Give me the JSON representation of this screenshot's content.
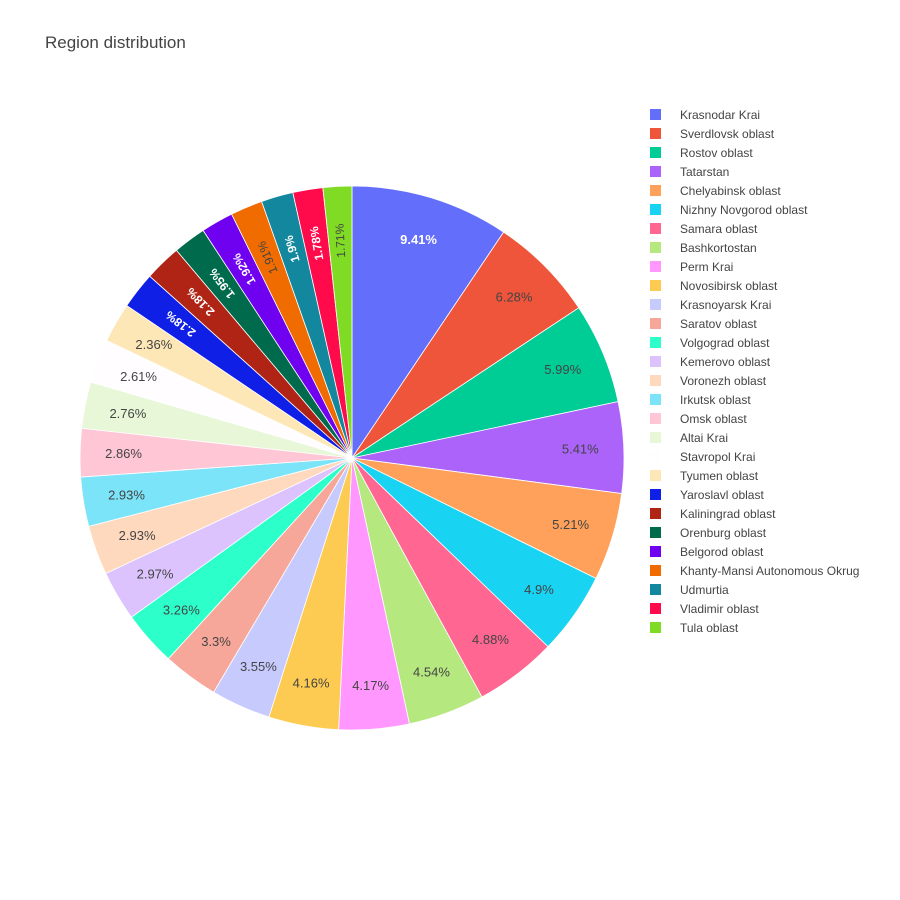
{
  "chart_data": {
    "type": "pie",
    "title": "Region distribution",
    "sort": "descending",
    "direction": "clockwise",
    "start_angle_deg": 0,
    "legend_placement": "right",
    "slices": [
      {
        "label": "Krasnodar Krai",
        "percent": 9.41,
        "text": "9.41%",
        "color": "#636EFA",
        "text_color": "#ffffff"
      },
      {
        "label": "Sverdlovsk oblast",
        "percent": 6.28,
        "text": "6.28%",
        "color": "#EF553B",
        "text_color": "#444444"
      },
      {
        "label": "Rostov oblast",
        "percent": 5.99,
        "text": "5.99%",
        "color": "#00CC96",
        "text_color": "#444444"
      },
      {
        "label": "Tatarstan",
        "percent": 5.41,
        "text": "5.41%",
        "color": "#AB63FA",
        "text_color": "#444444"
      },
      {
        "label": "Chelyabinsk oblast",
        "percent": 5.21,
        "text": "5.21%",
        "color": "#FFA15A",
        "text_color": "#444444"
      },
      {
        "label": "Nizhny Novgorod oblast",
        "percent": 4.9,
        "text": "4.9%",
        "color": "#19D3F3",
        "text_color": "#444444"
      },
      {
        "label": "Samara oblast",
        "percent": 4.88,
        "text": "4.88%",
        "color": "#FF6692",
        "text_color": "#444444"
      },
      {
        "label": "Bashkortostan",
        "percent": 4.54,
        "text": "4.54%",
        "color": "#B6E880",
        "text_color": "#444444"
      },
      {
        "label": "Perm Krai",
        "percent": 4.17,
        "text": "4.17%",
        "color": "#FF97FF",
        "text_color": "#444444"
      },
      {
        "label": "Novosibirsk oblast",
        "percent": 4.16,
        "text": "4.16%",
        "color": "#FECB52",
        "text_color": "#444444"
      },
      {
        "label": "Krasnoyarsk Krai",
        "percent": 3.55,
        "text": "3.55%",
        "color": "#C6CAFD",
        "text_color": "#444444"
      },
      {
        "label": "Saratov oblast",
        "percent": 3.3,
        "text": "3.3%",
        "color": "#F7A799",
        "text_color": "#444444"
      },
      {
        "label": "Volgograd oblast",
        "percent": 3.26,
        "text": "3.26%",
        "color": "#2DFFCA",
        "text_color": "#444444"
      },
      {
        "label": "Kemerovo oblast",
        "percent": 2.97,
        "text": "2.97%",
        "color": "#DDC3FD",
        "text_color": "#444444"
      },
      {
        "label": "Voronezh oblast",
        "percent": 2.93,
        "text": "2.93%",
        "color": "#FFD9BD",
        "text_color": "#444444"
      },
      {
        "label": "Irkutsk oblast",
        "percent": 2.93,
        "text": "2.93%",
        "color": "#7CE4F8",
        "text_color": "#444444"
      },
      {
        "label": "Omsk oblast",
        "percent": 2.86,
        "text": "2.86%",
        "color": "#FFC6D6",
        "text_color": "#444444"
      },
      {
        "label": "Altai Krai",
        "percent": 2.76,
        "text": "2.76%",
        "color": "#E7F7D7",
        "text_color": "#444444"
      },
      {
        "label": "Stavropol Krai",
        "percent": 2.61,
        "text": "2.61%",
        "color": "#FFFDFF",
        "text_color": "#444444"
      },
      {
        "label": "Tyumen oblast",
        "percent": 2.36,
        "text": "2.36%",
        "color": "#FEE7B7",
        "text_color": "#444444"
      },
      {
        "label": "Yaroslavl oblast",
        "percent": 2.18,
        "text": "2.18%",
        "color": "#0F1FE6",
        "text_color": "#ffffff"
      },
      {
        "label": "Kaliningrad oblast",
        "percent": 2.18,
        "text": "2.18%",
        "color": "#AF2415",
        "text_color": "#ffffff"
      },
      {
        "label": "Orenburg oblast",
        "percent": 1.95,
        "text": "1.95%",
        "color": "#006B4C",
        "text_color": "#ffffff"
      },
      {
        "label": "Belgorod oblast",
        "percent": 1.92,
        "text": "1.92%",
        "color": "#7000F0",
        "text_color": "#ffffff"
      },
      {
        "label": "Khanty-Mansi Autonomous Okrug",
        "percent": 1.91,
        "text": "1.91%",
        "color": "#F06B00",
        "text_color": "#444444"
      },
      {
        "label": "Udmurtia",
        "percent": 1.9,
        "text": "1.9%",
        "color": "#12879E",
        "text_color": "#ffffff"
      },
      {
        "label": "Vladimir oblast",
        "percent": 1.78,
        "text": "1.78%",
        "color": "#FF0A4A",
        "text_color": "#ffffff"
      },
      {
        "label": "Tula oblast",
        "percent": 1.71,
        "text": "1.71%",
        "color": "#80DB25",
        "text_color": "#444444"
      }
    ]
  }
}
